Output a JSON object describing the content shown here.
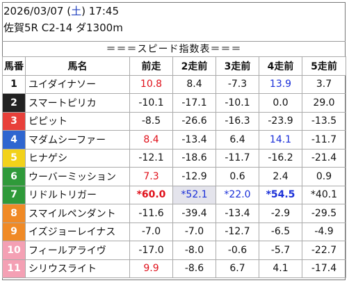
{
  "header": {
    "date": "2026/03/07",
    "dow_open": "(",
    "dow": "土",
    "dow_close": ")",
    "time": "17:45",
    "race": "佐賀5R C2-14 ダ1300m"
  },
  "title": "＝＝＝スピード指数表＝＝＝",
  "columns": [
    "馬番",
    "馬名",
    "前走",
    "2走前",
    "3走前",
    "4走前",
    "5走前"
  ],
  "colors": {
    "red": "#e0101a",
    "blue": "#1a2fd8",
    "highlight": "#e4e4ec"
  },
  "rows": [
    {
      "num": "1",
      "num_bg": "#ffffff",
      "num_fg": "#111111",
      "name": "ユイダイナソー",
      "cells": [
        {
          "v": "10.8",
          "c": "red"
        },
        {
          "v": "8.4"
        },
        {
          "v": "-7.3"
        },
        {
          "v": "13.9",
          "c": "blue"
        },
        {
          "v": "3.7"
        }
      ]
    },
    {
      "num": "2",
      "num_bg": "#222222",
      "num_fg": "#ffffff",
      "name": "スマートピリカ",
      "cells": [
        {
          "v": "-10.1"
        },
        {
          "v": "-17.1"
        },
        {
          "v": "-10.1"
        },
        {
          "v": "0.0"
        },
        {
          "v": "29.0"
        }
      ]
    },
    {
      "num": "3",
      "num_bg": "#e8403a",
      "num_fg": "#ffffff",
      "name": "ピピット",
      "cells": [
        {
          "v": "-8.5"
        },
        {
          "v": "-26.6"
        },
        {
          "v": "-16.3"
        },
        {
          "v": "-23.9"
        },
        {
          "v": "-13.5"
        }
      ]
    },
    {
      "num": "4",
      "num_bg": "#2f66d0",
      "num_fg": "#ffffff",
      "name": "マダムシーファー",
      "cells": [
        {
          "v": "8.4",
          "c": "red"
        },
        {
          "v": "-13.4"
        },
        {
          "v": "6.4"
        },
        {
          "v": "14.1",
          "c": "blue"
        },
        {
          "v": "-11.7"
        }
      ]
    },
    {
      "num": "5",
      "num_bg": "#f2d21a",
      "num_fg": "#ffffff",
      "name": "ヒナゲシ",
      "cells": [
        {
          "v": "-12.1"
        },
        {
          "v": "-18.6"
        },
        {
          "v": "-11.7"
        },
        {
          "v": "-16.2"
        },
        {
          "v": "-21.4"
        }
      ]
    },
    {
      "num": "6",
      "num_bg": "#2f9a3a",
      "num_fg": "#ffffff",
      "name": "ウーバーミッション",
      "cells": [
        {
          "v": "7.3",
          "c": "red"
        },
        {
          "v": "-12.9"
        },
        {
          "v": "0.6"
        },
        {
          "v": "2.4"
        },
        {
          "v": "0.9"
        }
      ]
    },
    {
      "num": "7",
      "num_bg": "#2f9a3a",
      "num_fg": "#ffffff",
      "name": "リドルトリガー",
      "cells": [
        {
          "v": "*60.0",
          "c": "red",
          "b": true
        },
        {
          "v": "*52.1",
          "c": "blue",
          "h": true
        },
        {
          "v": "*22.0",
          "c": "blue"
        },
        {
          "v": "*54.5",
          "c": "blue",
          "b": true
        },
        {
          "v": "*40.1"
        }
      ]
    },
    {
      "num": "8",
      "num_bg": "#f08a26",
      "num_fg": "#ffffff",
      "name": "スマイルペンダント",
      "cells": [
        {
          "v": "-11.6"
        },
        {
          "v": "-39.4"
        },
        {
          "v": "-13.4"
        },
        {
          "v": "-2.9"
        },
        {
          "v": "-29.5"
        }
      ]
    },
    {
      "num": "9",
      "num_bg": "#f08a26",
      "num_fg": "#ffffff",
      "name": "イズジョーレイナス",
      "cells": [
        {
          "v": "-7.0"
        },
        {
          "v": "-7.0"
        },
        {
          "v": "-12.7"
        },
        {
          "v": "-6.5"
        },
        {
          "v": "-4.9"
        }
      ]
    },
    {
      "num": "10",
      "num_bg": "#f4a0b4",
      "num_fg": "#ffffff",
      "name": "フィールアライヴ",
      "cells": [
        {
          "v": "-17.0"
        },
        {
          "v": "-8.0"
        },
        {
          "v": "-0.6"
        },
        {
          "v": "-5.7"
        },
        {
          "v": "-22.7"
        }
      ]
    },
    {
      "num": "11",
      "num_bg": "#f4a0b4",
      "num_fg": "#ffffff",
      "name": "シリウスライト",
      "cells": [
        {
          "v": "9.9",
          "c": "red"
        },
        {
          "v": "-8.6"
        },
        {
          "v": "6.7"
        },
        {
          "v": "4.1"
        },
        {
          "v": "-17.4"
        }
      ]
    }
  ]
}
